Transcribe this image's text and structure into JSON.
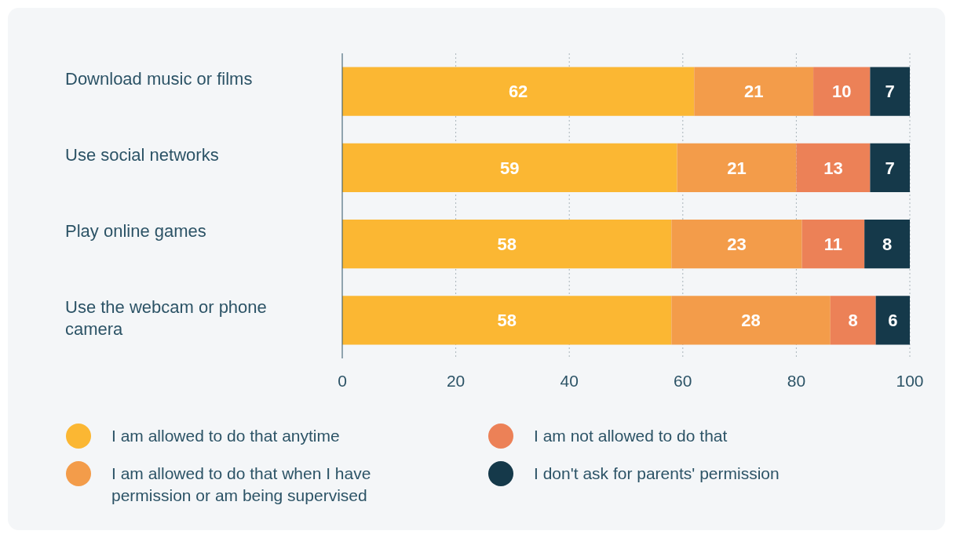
{
  "chart_data": {
    "type": "bar",
    "orientation": "horizontal",
    "stacked": true,
    "categories": [
      "Download music or films",
      "Use social networks",
      "Play online games",
      "Use the webcam or phone camera"
    ],
    "series": [
      {
        "name": "I am allowed to do that anytime",
        "color": "#fbb733",
        "values": [
          62,
          59,
          58,
          58
        ]
      },
      {
        "name": "I am allowed to do that when I have permission or am being supervised",
        "color": "#f39c4a",
        "values": [
          21,
          21,
          23,
          28
        ]
      },
      {
        "name": "I am not allowed to do that",
        "color": "#ec8157",
        "values": [
          10,
          13,
          11,
          8
        ]
      },
      {
        "name": "I don't ask for parents' permission",
        "color": "#15394a",
        "values": [
          7,
          7,
          8,
          6
        ]
      }
    ],
    "xlim": [
      0,
      100
    ],
    "xticks": [
      0,
      20,
      40,
      60,
      80,
      100
    ],
    "grid": "x",
    "data_labels": true,
    "legend": "bottom"
  }
}
